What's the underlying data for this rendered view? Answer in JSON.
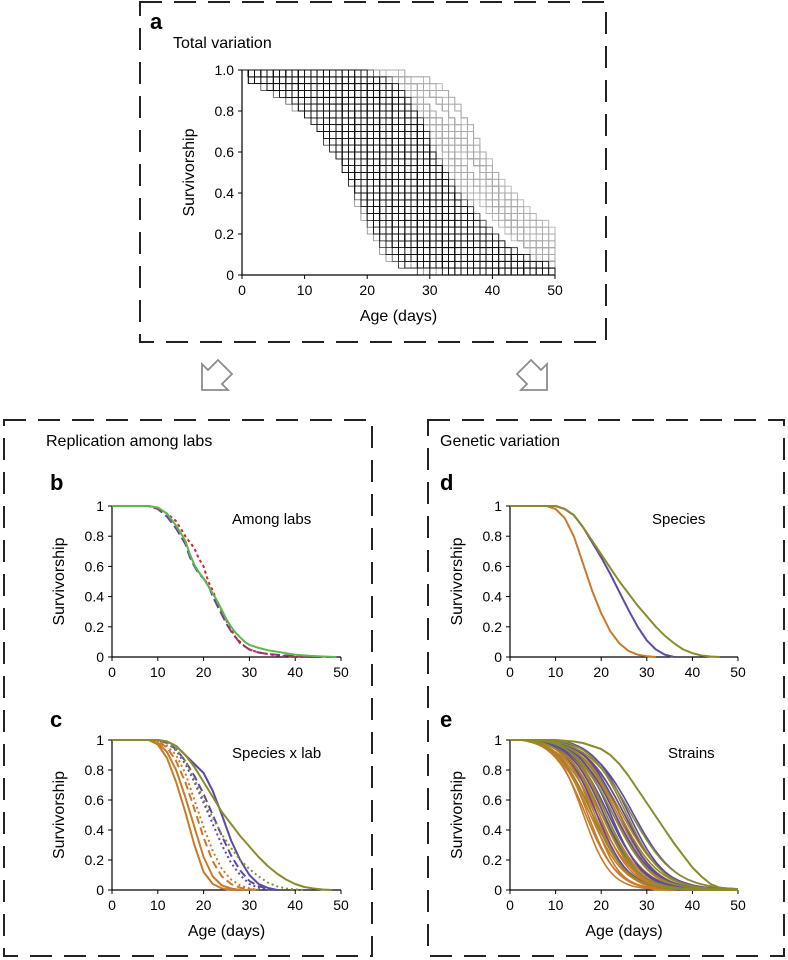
{
  "figure": {
    "panel_a": {
      "letter": "a",
      "group_title": "Total variation"
    },
    "group_left": {
      "title": "Replication among labs"
    },
    "group_right": {
      "title": "Genetic variation"
    },
    "colors": {
      "border": "#222222",
      "arrow": "#8c8c8c",
      "dense": "#111111",
      "light": "#a8a8a8"
    }
  },
  "chart_data": [
    {
      "id": "a",
      "type": "line",
      "letter": "a",
      "inner_title": "",
      "xlabel": "Age (days)",
      "ylabel": "Survivorship",
      "xlim": [
        0,
        50
      ],
      "ylim": [
        0,
        1
      ],
      "xticks": [
        0,
        10,
        20,
        30,
        40,
        50
      ],
      "yticks": [
        0,
        0.2,
        0.4,
        0.6,
        0.8,
        1.0
      ],
      "xtick_labels": [
        "0",
        "10",
        "20",
        "30",
        "40",
        "50"
      ],
      "ytick_labels": [
        "0",
        "0.2",
        "0.4",
        "0.6",
        "0.8",
        "1.0"
      ],
      "grid": false,
      "legend": "none",
      "series_description": "several hundred individual step survivorship curves; densest between ages 15 and 35; dark core with lighter outliers",
      "dense_cloud": {
        "count": 320,
        "median_range": [
          16,
          32
        ],
        "spread_range": [
          2.5,
          6
        ],
        "color": "#111111"
      },
      "light_cloud": {
        "count": 70,
        "median_range": [
          20,
          40
        ],
        "spread_range": [
          3,
          8
        ],
        "color": "#a8a8a8"
      }
    },
    {
      "id": "b",
      "type": "line",
      "letter": "b",
      "inner_title": "Among labs",
      "xlabel": "",
      "ylabel": "Survivorship",
      "xlim": [
        0,
        50
      ],
      "ylim": [
        0,
        1
      ],
      "xticks": [
        0,
        10,
        20,
        30,
        40,
        50
      ],
      "yticks": [
        0,
        0.2,
        0.4,
        0.6,
        0.8,
        1
      ],
      "xtick_labels": [
        "0",
        "10",
        "20",
        "30",
        "40",
        "50"
      ],
      "ytick_labels": [
        "0",
        "0.2",
        "0.4",
        "0.6",
        "0.8",
        "1"
      ],
      "grid": false,
      "legend": "none",
      "series": [
        {
          "color": "#5b4aa8",
          "dash": "10,4",
          "x": [
            0,
            8,
            10,
            12,
            14,
            16,
            17,
            18,
            19,
            20,
            21,
            22,
            23,
            24,
            25,
            26,
            27,
            28,
            29,
            30,
            32,
            34,
            36,
            38,
            40,
            43,
            46,
            48
          ],
          "y": [
            1,
            1,
            0.98,
            0.93,
            0.85,
            0.75,
            0.66,
            0.6,
            0.55,
            0.52,
            0.48,
            0.4,
            0.34,
            0.28,
            0.22,
            0.17,
            0.13,
            0.09,
            0.07,
            0.05,
            0.03,
            0.02,
            0.015,
            0.01,
            0.005,
            0,
            0,
            0
          ]
        },
        {
          "color": "#d4242a",
          "dash": "3,3",
          "x": [
            0,
            8,
            10,
            12,
            14,
            16,
            17,
            18,
            19,
            20,
            21,
            22,
            23,
            24,
            25,
            26,
            27,
            28,
            29,
            30,
            32,
            34,
            36,
            38,
            40,
            43,
            46
          ],
          "y": [
            1,
            1,
            0.98,
            0.95,
            0.9,
            0.8,
            0.76,
            0.72,
            0.65,
            0.6,
            0.5,
            0.44,
            0.36,
            0.3,
            0.24,
            0.18,
            0.13,
            0.1,
            0.07,
            0.05,
            0.03,
            0.02,
            0.01,
            0.005,
            0,
            0,
            0
          ]
        },
        {
          "color": "#5cb84a",
          "dash": "",
          "x": [
            0,
            8,
            10,
            12,
            14,
            16,
            17,
            18,
            19,
            20,
            21,
            22,
            23,
            24,
            25,
            26,
            27,
            28,
            29,
            30,
            32,
            34,
            36,
            38,
            40,
            43,
            46,
            49
          ],
          "y": [
            1,
            1,
            0.99,
            0.95,
            0.87,
            0.77,
            0.68,
            0.61,
            0.56,
            0.52,
            0.47,
            0.42,
            0.37,
            0.31,
            0.25,
            0.2,
            0.16,
            0.13,
            0.1,
            0.08,
            0.06,
            0.045,
            0.035,
            0.025,
            0.015,
            0.008,
            0.003,
            0
          ]
        }
      ]
    },
    {
      "id": "c",
      "type": "line",
      "letter": "c",
      "inner_title": "Species x lab",
      "xlabel": "Age (days)",
      "ylabel": "Survivorship",
      "xlim": [
        0,
        50
      ],
      "ylim": [
        0,
        1
      ],
      "xticks": [
        0,
        10,
        20,
        30,
        40,
        50
      ],
      "yticks": [
        0,
        0.2,
        0.4,
        0.6,
        0.8,
        1
      ],
      "xtick_labels": [
        "0",
        "10",
        "20",
        "30",
        "40",
        "50"
      ],
      "ytick_labels": [
        "0",
        "0.2",
        "0.4",
        "0.6",
        "0.8",
        "1"
      ],
      "grid": false,
      "legend": "none",
      "series": [
        {
          "color": "#c87a2a",
          "dash": "",
          "x": [
            0,
            8,
            10,
            12,
            14,
            16,
            18,
            20,
            22,
            24,
            26,
            28
          ],
          "y": [
            1,
            1,
            0.97,
            0.88,
            0.72,
            0.52,
            0.3,
            0.12,
            0.04,
            0.01,
            0,
            0
          ]
        },
        {
          "color": "#c87a2a",
          "dash": "",
          "x": [
            0,
            8,
            10,
            12,
            14,
            16,
            18,
            20,
            22,
            24,
            26,
            28,
            30
          ],
          "y": [
            1,
            1,
            0.98,
            0.92,
            0.8,
            0.62,
            0.42,
            0.22,
            0.09,
            0.03,
            0.01,
            0,
            0
          ]
        },
        {
          "color": "#c87a2a",
          "dash": "8,4",
          "x": [
            0,
            8,
            10,
            12,
            14,
            16,
            18,
            20,
            22,
            24,
            26,
            28,
            30,
            32
          ],
          "y": [
            1,
            1,
            0.99,
            0.95,
            0.86,
            0.72,
            0.54,
            0.35,
            0.19,
            0.09,
            0.04,
            0.015,
            0.005,
            0
          ]
        },
        {
          "color": "#c87a2a",
          "dash": "2,3",
          "x": [
            0,
            8,
            10,
            12,
            14,
            16,
            18,
            20,
            22,
            24,
            26,
            28,
            30,
            32
          ],
          "y": [
            1,
            1,
            0.99,
            0.96,
            0.9,
            0.78,
            0.6,
            0.42,
            0.26,
            0.14,
            0.07,
            0.03,
            0.01,
            0
          ]
        },
        {
          "color": "#5b4aa8",
          "dash": "",
          "x": [
            0,
            10,
            12,
            14,
            16,
            18,
            20,
            22,
            24,
            26,
            28,
            30,
            32,
            34,
            36
          ],
          "y": [
            1,
            1,
            0.99,
            0.96,
            0.9,
            0.84,
            0.78,
            0.66,
            0.5,
            0.33,
            0.2,
            0.1,
            0.04,
            0.015,
            0
          ]
        },
        {
          "color": "#5b4aa8",
          "dash": "8,4",
          "x": [
            0,
            10,
            12,
            14,
            16,
            18,
            20,
            22,
            24,
            26,
            28,
            30,
            32,
            34,
            36
          ],
          "y": [
            1,
            1,
            0.98,
            0.94,
            0.86,
            0.76,
            0.64,
            0.5,
            0.36,
            0.23,
            0.13,
            0.06,
            0.025,
            0.01,
            0
          ]
        },
        {
          "color": "#5b4aa8",
          "dash": "2,3",
          "x": [
            0,
            10,
            12,
            14,
            16,
            18,
            20,
            22,
            24,
            26,
            28,
            30,
            32,
            34,
            36
          ],
          "y": [
            1,
            1,
            0.98,
            0.93,
            0.84,
            0.72,
            0.58,
            0.44,
            0.3,
            0.18,
            0.1,
            0.04,
            0.015,
            0.005,
            0
          ]
        },
        {
          "color": "#8b8b2e",
          "dash": "",
          "x": [
            0,
            10,
            12,
            14,
            16,
            18,
            20,
            22,
            24,
            26,
            28,
            30,
            32,
            34,
            36,
            38,
            40,
            42,
            44,
            46,
            48
          ],
          "y": [
            1,
            1,
            0.99,
            0.96,
            0.9,
            0.82,
            0.72,
            0.62,
            0.52,
            0.44,
            0.36,
            0.29,
            0.22,
            0.16,
            0.11,
            0.07,
            0.04,
            0.02,
            0.01,
            0.003,
            0
          ]
        },
        {
          "color": "#8b8b2e",
          "dash": "2,3",
          "x": [
            0,
            10,
            12,
            14,
            16,
            18,
            20,
            22,
            24,
            26,
            28,
            30,
            32,
            34,
            36,
            38,
            40,
            42
          ],
          "y": [
            1,
            1,
            0.98,
            0.94,
            0.86,
            0.74,
            0.6,
            0.48,
            0.37,
            0.28,
            0.2,
            0.14,
            0.09,
            0.05,
            0.025,
            0.01,
            0.003,
            0
          ]
        }
      ]
    },
    {
      "id": "d",
      "type": "line",
      "letter": "d",
      "inner_title": "Species",
      "xlabel": "",
      "ylabel": "Survivorship",
      "xlim": [
        0,
        50
      ],
      "ylim": [
        0,
        1
      ],
      "xticks": [
        0,
        10,
        20,
        30,
        40,
        50
      ],
      "yticks": [
        0,
        0.2,
        0.4,
        0.6,
        0.8,
        1
      ],
      "xtick_labels": [
        "0",
        "10",
        "20",
        "30",
        "40",
        "50"
      ],
      "ytick_labels": [
        "0",
        "0.2",
        "0.4",
        "0.6",
        "0.8",
        "1"
      ],
      "grid": false,
      "legend": "none",
      "series": [
        {
          "color": "#c87a2a",
          "dash": "",
          "x": [
            0,
            8,
            10,
            12,
            14,
            16,
            18,
            20,
            22,
            24,
            26,
            28,
            30,
            32
          ],
          "y": [
            1,
            1,
            0.98,
            0.92,
            0.8,
            0.62,
            0.44,
            0.29,
            0.17,
            0.09,
            0.04,
            0.015,
            0.005,
            0
          ]
        },
        {
          "color": "#5b4aa8",
          "dash": "",
          "x": [
            0,
            10,
            12,
            14,
            16,
            18,
            20,
            22,
            24,
            26,
            28,
            30,
            32,
            34,
            36
          ],
          "y": [
            1,
            1,
            0.98,
            0.94,
            0.86,
            0.76,
            0.66,
            0.55,
            0.43,
            0.31,
            0.2,
            0.11,
            0.05,
            0.015,
            0
          ]
        },
        {
          "color": "#8b8b2e",
          "dash": "",
          "x": [
            0,
            10,
            12,
            14,
            16,
            18,
            20,
            22,
            24,
            26,
            28,
            30,
            32,
            34,
            36,
            38,
            40,
            42,
            44,
            46
          ],
          "y": [
            1,
            1,
            0.98,
            0.94,
            0.86,
            0.77,
            0.68,
            0.59,
            0.5,
            0.42,
            0.34,
            0.27,
            0.2,
            0.14,
            0.09,
            0.05,
            0.025,
            0.01,
            0.003,
            0
          ]
        }
      ]
    },
    {
      "id": "e",
      "type": "line",
      "letter": "e",
      "inner_title": "Strains",
      "xlabel": "Age (days)",
      "ylabel": "Survivorship",
      "xlim": [
        0,
        50
      ],
      "ylim": [
        0,
        1
      ],
      "xticks": [
        0,
        10,
        20,
        30,
        40,
        50
      ],
      "yticks": [
        0,
        0.2,
        0.4,
        0.6,
        0.8,
        1
      ],
      "xtick_labels": [
        "0",
        "10",
        "20",
        "30",
        "40",
        "50"
      ],
      "ytick_labels": [
        "0",
        "0.2",
        "0.4",
        "0.6",
        "0.8",
        "1"
      ],
      "grid": false,
      "legend": "none",
      "strain_groups": [
        {
          "color": "#c87a2a",
          "medians": [
            16,
            16.5,
            17,
            17.5,
            18,
            18,
            18.5,
            19,
            19,
            19.5,
            20,
            20,
            20.5,
            21,
            21.5,
            22,
            22.5,
            23,
            23.5,
            24,
            24.5,
            25
          ],
          "spreads": [
            3,
            3.5,
            3.2,
            3.8,
            3,
            4,
            3.5,
            3.2,
            4.2,
            3.6,
            3.8,
            4.5,
            3.4,
            3.9,
            4.1,
            3.6,
            4.4,
            3.8,
            4.2,
            4,
            4.6,
            4.3
          ]
        },
        {
          "color": "#5b4aa8",
          "medians": [
            19,
            20.5,
            21.5,
            22,
            23,
            24,
            25,
            26,
            27
          ],
          "spreads": [
            3.5,
            3.8,
            4,
            3.6,
            4.2,
            3.9,
            4.4,
            4,
            4.6
          ]
        },
        {
          "color": "#8b8b2e",
          "medians": [
            18,
            20,
            21,
            22.5,
            24,
            25.5,
            26.5
          ],
          "spreads": [
            3.8,
            4,
            3.6,
            4.2,
            4.4,
            4,
            4.8
          ]
        }
      ],
      "series": [
        {
          "color": "#8b8b2e",
          "dash": "",
          "x": [
            0,
            10,
            14,
            16,
            18,
            20,
            22,
            24,
            26,
            28,
            30,
            32,
            34,
            36,
            38,
            40,
            42,
            44,
            46,
            48
          ],
          "y": [
            1,
            1,
            0.99,
            0.98,
            0.96,
            0.94,
            0.9,
            0.84,
            0.76,
            0.67,
            0.58,
            0.49,
            0.4,
            0.31,
            0.23,
            0.15,
            0.09,
            0.04,
            0.015,
            0
          ]
        }
      ]
    }
  ]
}
